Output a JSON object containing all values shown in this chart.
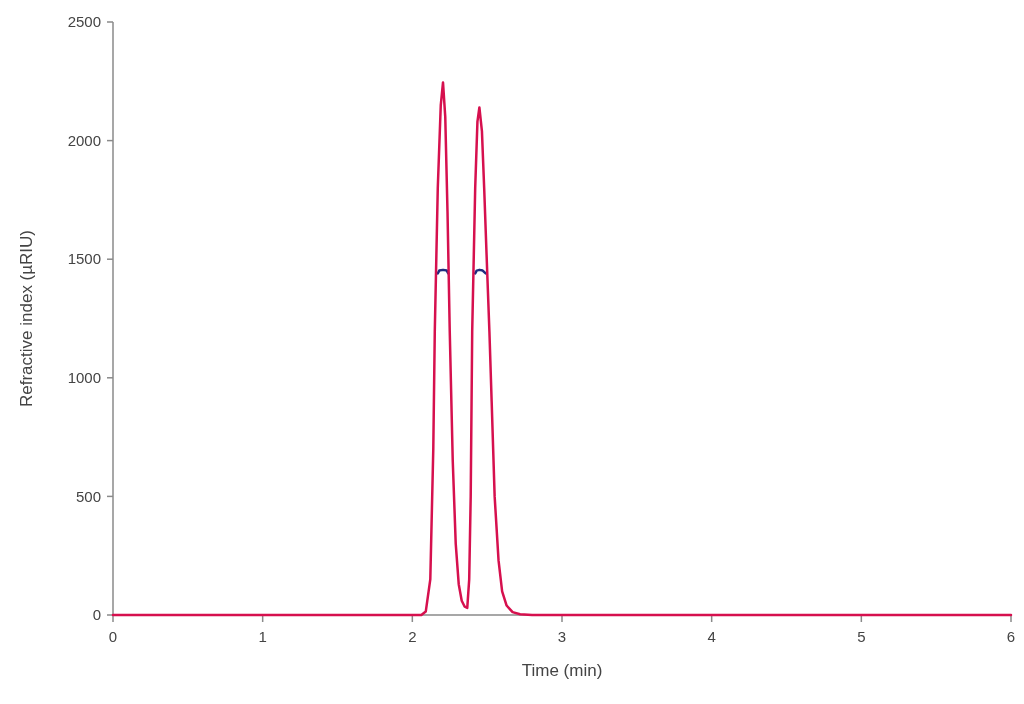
{
  "chart_data": {
    "type": "line",
    "xlabel": "Time (min)",
    "ylabel": "Refractive index (µRIU)",
    "xlim": [
      0,
      6
    ],
    "xticks": [
      0,
      1,
      2,
      3,
      4,
      5,
      6
    ],
    "ylim": [
      0,
      2500
    ],
    "yticks": [
      0,
      500,
      1000,
      1500,
      2000,
      2500
    ],
    "grid": false,
    "marker": "none",
    "line_style": "solid",
    "series": [
      {
        "color": "#1f2d80",
        "x": [
          2.17,
          2.18,
          2.205,
          2.23,
          2.24,
          2.33,
          2.42,
          2.43,
          2.448,
          2.47,
          2.49
        ],
        "values": [
          1440,
          1452,
          1455,
          1452,
          1440,
          null,
          1440,
          1452,
          1455,
          1452,
          1440
        ]
      },
      {
        "color": "#d6104e",
        "x": [
          0,
          2.0,
          2.06,
          2.09,
          2.12,
          2.14,
          2.15,
          2.17,
          2.19,
          2.205,
          2.22,
          2.235,
          2.25,
          2.27,
          2.29,
          2.31,
          2.33,
          2.35,
          2.367,
          2.38,
          2.39,
          2.4,
          2.42,
          2.435,
          2.448,
          2.465,
          2.48,
          2.5,
          2.515,
          2.53,
          2.55,
          2.576,
          2.6,
          2.63,
          2.67,
          2.72,
          2.8,
          6
        ],
        "values": [
          0,
          0,
          0,
          15,
          150,
          700,
          1195,
          1800,
          2150,
          2245,
          2100,
          1700,
          1195,
          650,
          300,
          130,
          60,
          35,
          30,
          150,
          500,
          1195,
          1800,
          2080,
          2140,
          2040,
          1800,
          1450,
          1195,
          900,
          500,
          230,
          100,
          40,
          12,
          3,
          0,
          0
        ]
      }
    ]
  }
}
